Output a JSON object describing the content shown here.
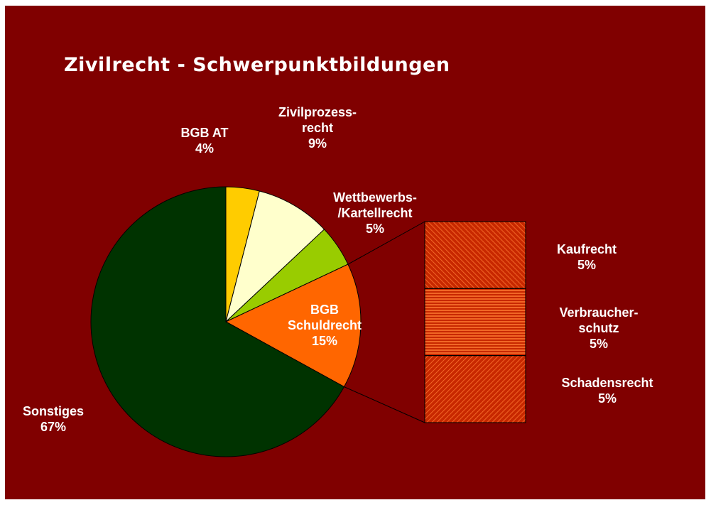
{
  "chart_data": {
    "type": "pie",
    "title": "Zivilrecht - Schwerpunktbildungen",
    "categories": [
      "BGB AT",
      "Zivilprozess-\nrecht",
      "Wettbewerbs-\n/Kartellrecht",
      "BGB\nSchuldrecht",
      "Sonstiges"
    ],
    "values": [
      4,
      9,
      5,
      15,
      67
    ],
    "value_labels": [
      "4%",
      "9%",
      "5%",
      "15%",
      "67%"
    ],
    "colors": [
      "#ffcc00",
      "#ffffcc",
      "#99cc00",
      "#ff6600",
      "#003300"
    ],
    "breakdown": {
      "categories": [
        "Kaufrecht",
        "Verbraucher-\nschutz",
        "Schadensrecht"
      ],
      "values": [
        5,
        5,
        5
      ],
      "value_labels": [
        "5%",
        "5%",
        "5%"
      ],
      "colors": [
        "#c82800",
        "#c82800",
        "#c82800"
      ]
    }
  }
}
